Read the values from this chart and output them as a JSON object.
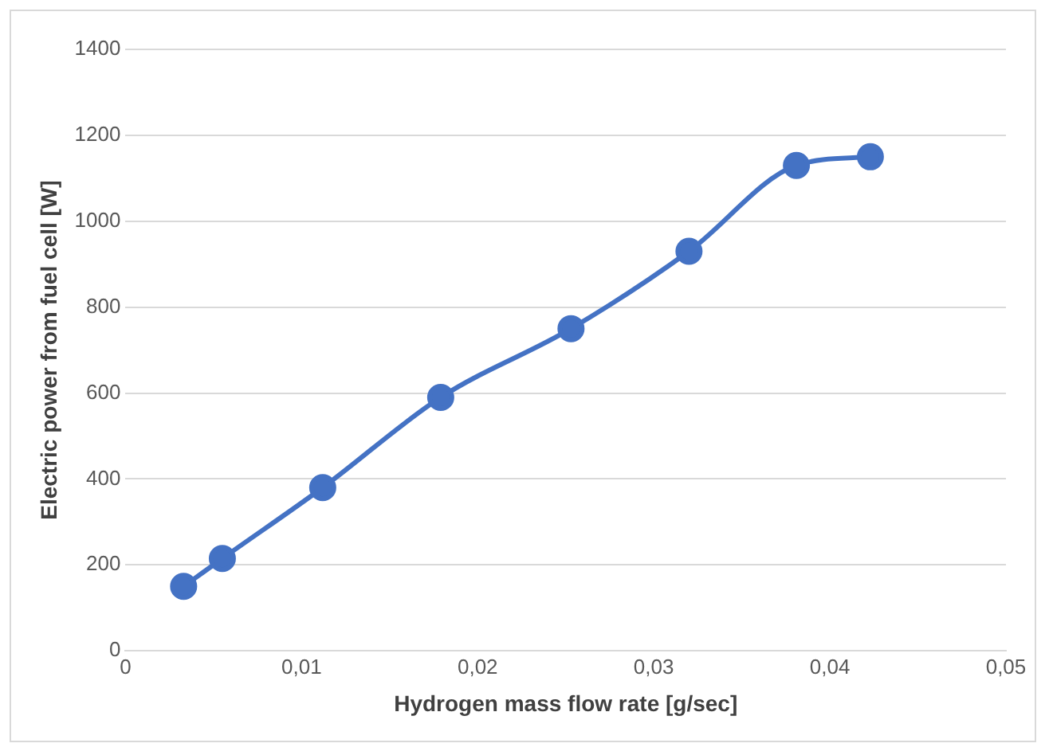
{
  "chart_data": {
    "type": "line",
    "xlabel": "Hydrogen mass flow rate [g/sec]",
    "ylabel": "Electric power from fuel cell [W]",
    "x": [
      0.0033,
      0.0055,
      0.0112,
      0.0179,
      0.0253,
      0.032,
      0.0381,
      0.0423
    ],
    "series": [
      {
        "color": "#4472c4",
        "values": [
          150,
          215,
          380,
          590,
          750,
          930,
          1130,
          1150
        ]
      }
    ],
    "xlim": [
      0,
      0.05
    ],
    "xticks": [
      0,
      {
        "value": 0.01,
        "label": "0,01"
      },
      {
        "value": 0.02,
        "label": "0,02"
      },
      {
        "value": 0.03,
        "label": "0,03"
      },
      {
        "value": 0.04,
        "label": "0,04"
      },
      {
        "value": 0.05,
        "label": "0,05"
      }
    ],
    "ylim": [
      0,
      1400
    ],
    "yticks": [
      0,
      200,
      400,
      600,
      800,
      1000,
      1200,
      1400
    ],
    "grid": "y",
    "marker": "circle",
    "line_style": "solid",
    "legend": false
  }
}
